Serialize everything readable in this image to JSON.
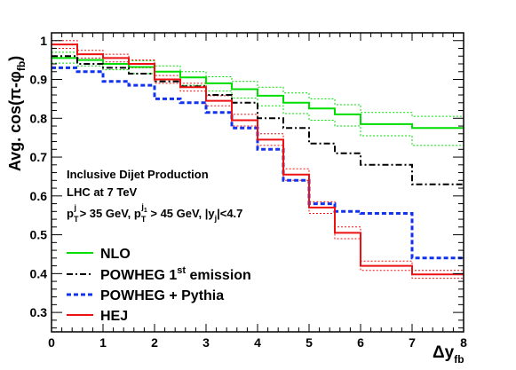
{
  "chart_data": {
    "type": "line",
    "xlabel": "Δy",
    "xlabel_sub": "fb",
    "ylabel": "Avg. cos(π-φ",
    "ylabel_sub": "fb",
    "ylabel_close": ")",
    "xlim": [
      0,
      8
    ],
    "ylim": [
      0.25,
      1.02
    ],
    "x_ticks": [
      0,
      1,
      2,
      3,
      4,
      5,
      6,
      7,
      8
    ],
    "y_ticks": [
      0.3,
      0.4,
      0.5,
      0.6,
      0.7,
      0.8,
      0.9,
      1
    ],
    "x_tick_labels": [
      "0",
      "1",
      "2",
      "3",
      "4",
      "5",
      "6",
      "7",
      "8"
    ],
    "y_tick_labels": [
      "0.3",
      "0.4",
      "0.5",
      "0.6",
      "0.7",
      "0.8",
      "0.9",
      "1"
    ],
    "bin_edges": [
      0,
      0.5,
      1,
      1.5,
      2,
      2.5,
      3,
      3.5,
      4,
      4.5,
      5,
      5.5,
      6,
      7,
      8
    ],
    "annotations": {
      "line1": "Inclusive Dijet Production",
      "line2": "LHC at 7 TeV",
      "line3_a": "p",
      "line3_a_sub": "T",
      "line3_a_sup": "j",
      "line3_b": " > 35 GeV, p",
      "line3_b_sub": "T",
      "line3_b_sup": "j",
      "line3_b_supsub": "1",
      "line3_c": " > 45 GeV, |y",
      "line3_c_sub": "j",
      "line3_d": "|<4.7"
    },
    "series": [
      {
        "name": "NLO",
        "color": "#00dd00",
        "style": "solid",
        "values": [
          0.955,
          0.95,
          0.94,
          0.932,
          0.92,
          0.905,
          0.89,
          0.875,
          0.858,
          0.84,
          0.825,
          0.81,
          0.785,
          0.775
        ],
        "band_upper": [
          0.97,
          0.965,
          0.955,
          0.948,
          0.935,
          0.92,
          0.907,
          0.895,
          0.88,
          0.865,
          0.85,
          0.835,
          0.815,
          0.805
        ],
        "band_lower": [
          0.942,
          0.935,
          0.925,
          0.915,
          0.9,
          0.885,
          0.87,
          0.852,
          0.832,
          0.812,
          0.795,
          0.78,
          0.755,
          0.73
        ]
      },
      {
        "name": "POWHEG 1",
        "name_sup": "st",
        "name_tail": " emission",
        "color": "#000000",
        "style": "dashdot",
        "values": [
          0.96,
          0.94,
          0.93,
          0.915,
          0.895,
          0.882,
          0.86,
          0.84,
          0.8,
          0.775,
          0.735,
          0.71,
          0.68,
          0.63
        ]
      },
      {
        "name": "POWHEG + Pythia",
        "color": "#1133ee",
        "style": "dashed",
        "values": [
          0.93,
          0.92,
          0.895,
          0.885,
          0.85,
          0.84,
          0.815,
          0.775,
          0.72,
          0.64,
          0.58,
          0.56,
          0.555,
          0.44
        ]
      },
      {
        "name": "HEJ",
        "color": "#ee1111",
        "style": "solid",
        "values": [
          0.99,
          0.965,
          0.955,
          0.94,
          0.9,
          0.88,
          0.845,
          0.795,
          0.745,
          0.655,
          0.57,
          0.505,
          0.42,
          0.398
        ],
        "band_upper": [
          1.0,
          0.975,
          0.965,
          0.95,
          0.91,
          0.89,
          0.858,
          0.81,
          0.76,
          0.67,
          0.585,
          0.52,
          0.432,
          0.408
        ],
        "band_lower": [
          0.98,
          0.955,
          0.945,
          0.93,
          0.89,
          0.87,
          0.832,
          0.78,
          0.73,
          0.64,
          0.555,
          0.49,
          0.408,
          0.388
        ]
      }
    ]
  }
}
